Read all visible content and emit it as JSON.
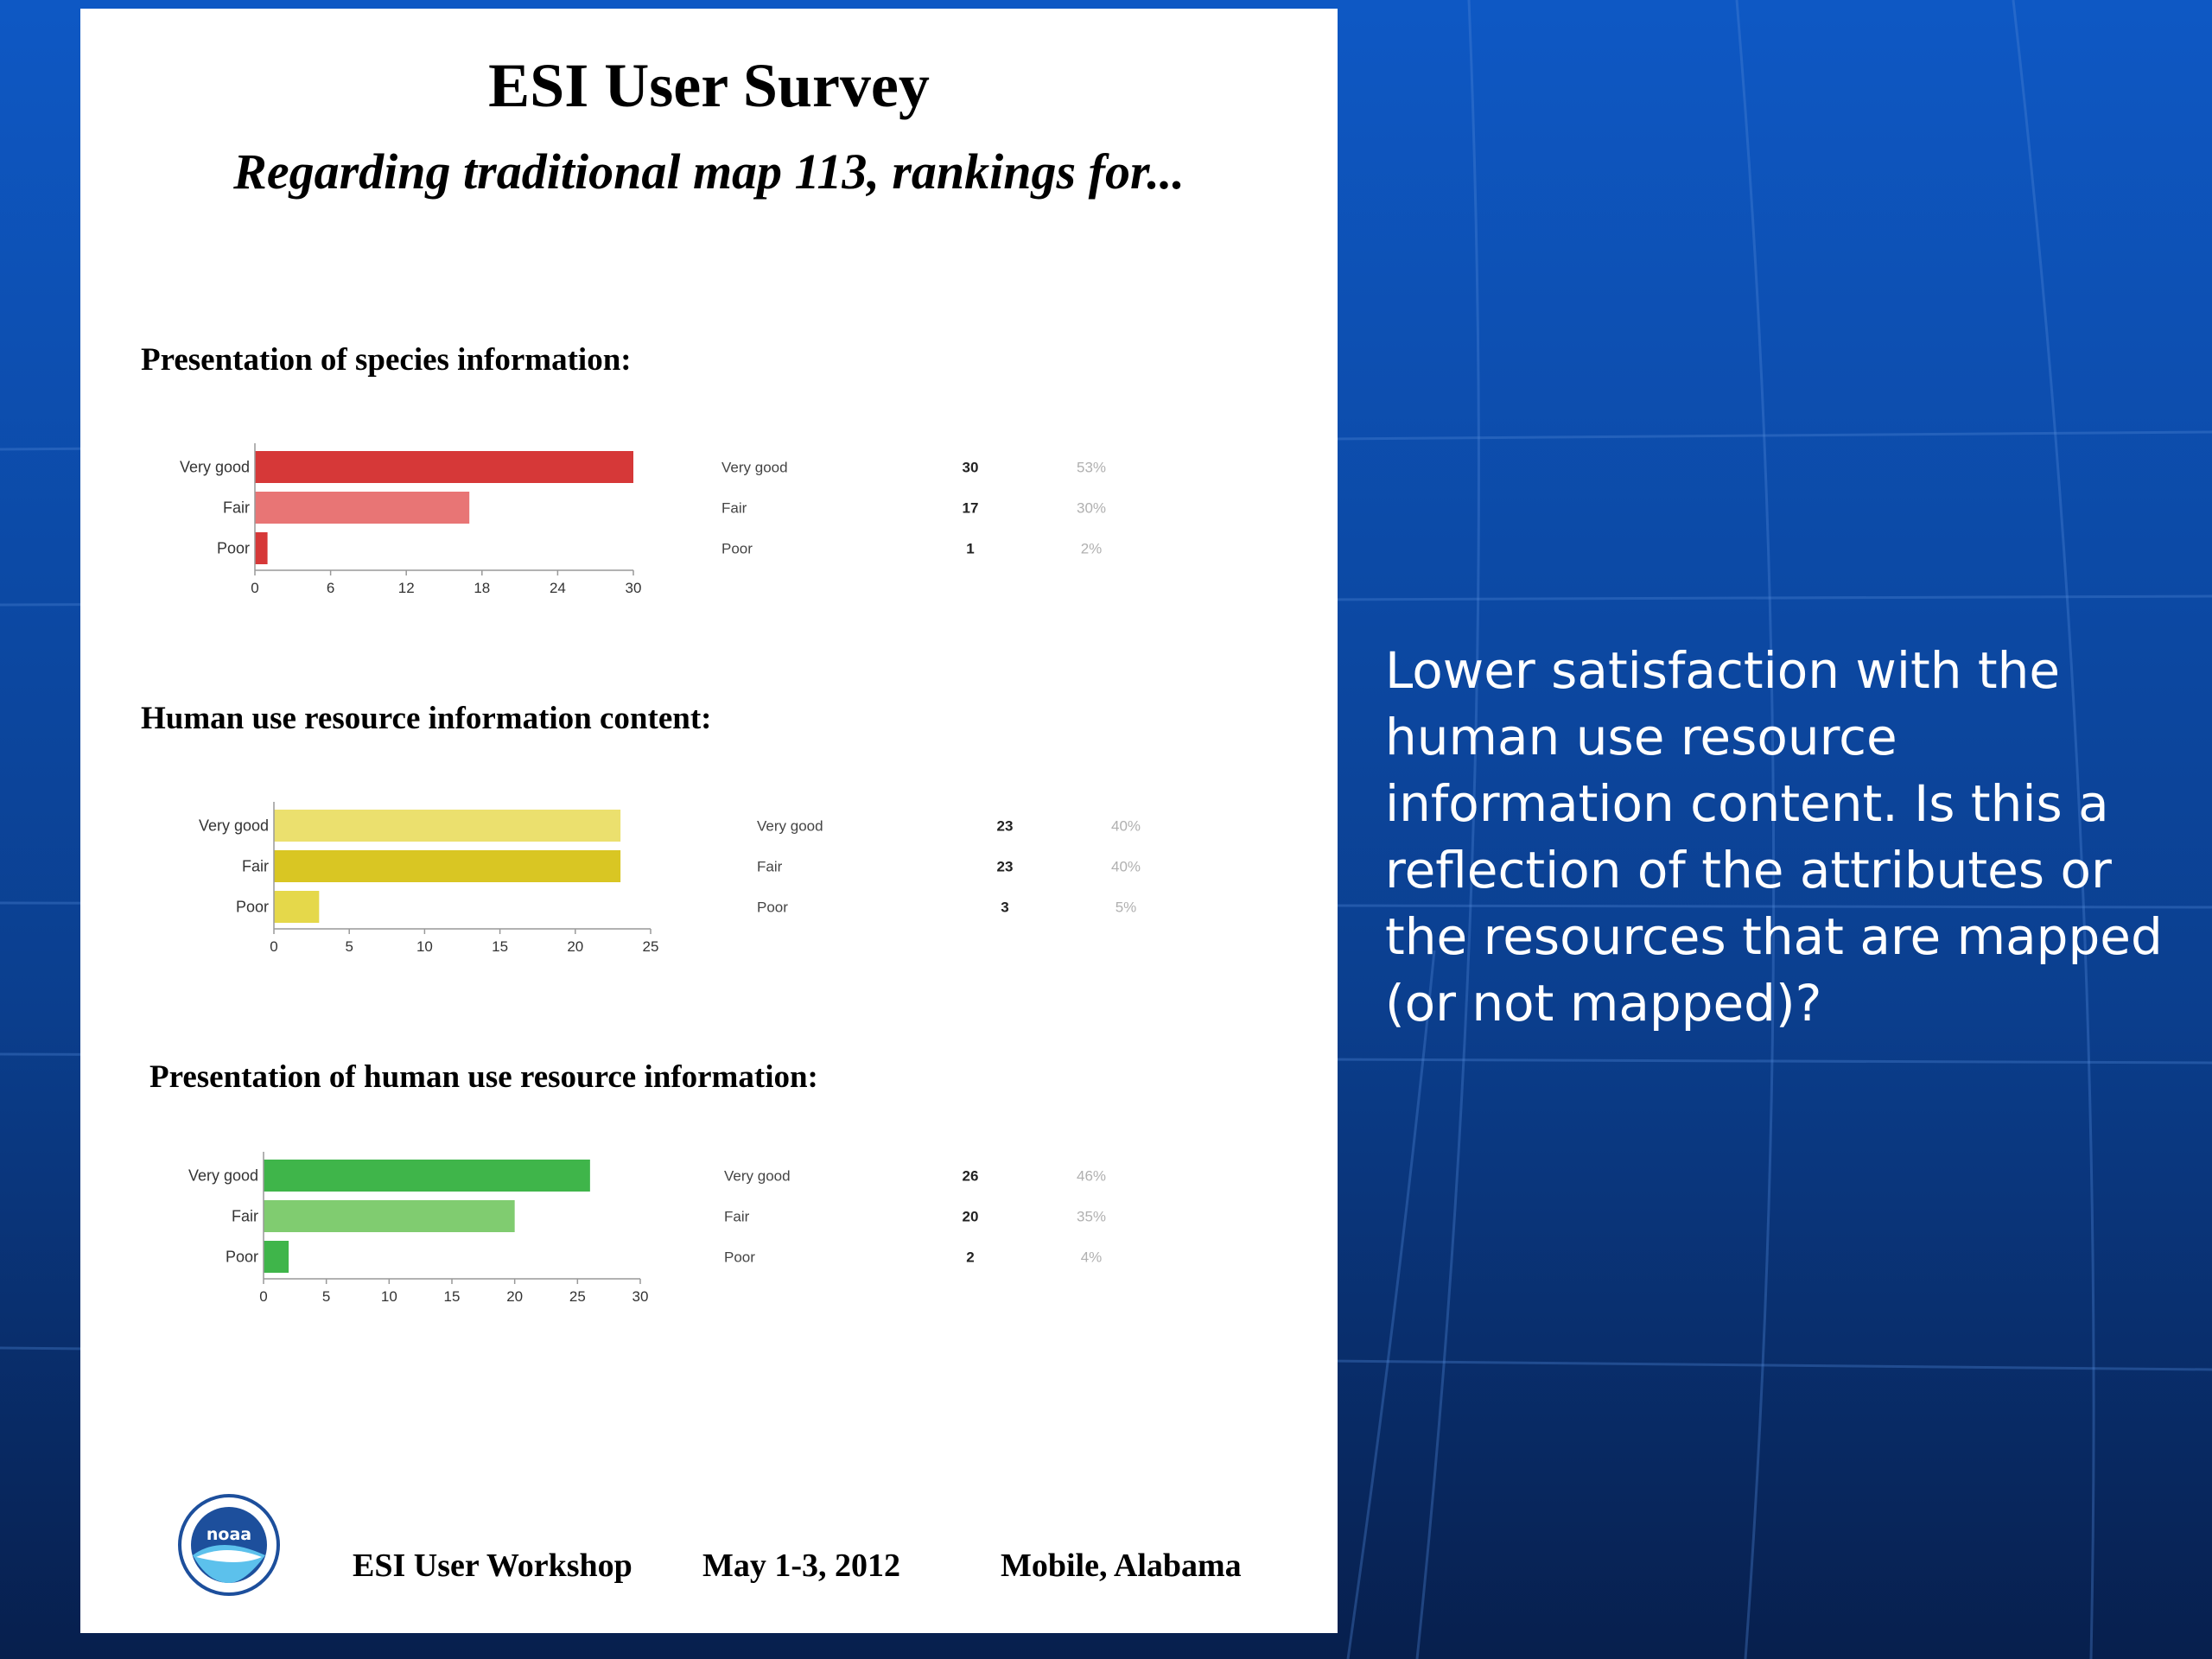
{
  "document": {
    "title": "ESI User Survey",
    "subtitle": "Regarding traditional map 113, rankings for..."
  },
  "chart_data": [
    {
      "type": "bar",
      "orientation": "horizontal",
      "title": "Presentation of species information:",
      "categories": [
        "Very good",
        "Fair",
        "Poor"
      ],
      "values": [
        30,
        17,
        1
      ],
      "percentages": [
        "53%",
        "30%",
        "2%"
      ],
      "xlim": [
        0,
        30
      ],
      "xticks": [
        "0",
        "6",
        "12",
        "18",
        "24",
        "30"
      ],
      "colors": [
        "#d63838",
        "#e87575",
        "#d63838"
      ],
      "table_color": "#b0b0b0"
    },
    {
      "type": "bar",
      "orientation": "horizontal",
      "title": "Human use resource information content:",
      "categories": [
        "Very good",
        "Fair",
        "Poor"
      ],
      "values": [
        23,
        23,
        3
      ],
      "percentages": [
        "40%",
        "40%",
        "5%"
      ],
      "xlim": [
        0,
        25
      ],
      "xticks": [
        "0",
        "5",
        "10",
        "15",
        "20",
        "25"
      ],
      "colors": [
        "#ebe06e",
        "#d9c623",
        "#e5d84a"
      ],
      "table_color": "#b0b0b0"
    },
    {
      "type": "bar",
      "orientation": "horizontal",
      "title": "Presentation of human use resource information:",
      "categories": [
        "Very good",
        "Fair",
        "Poor"
      ],
      "values": [
        26,
        20,
        2
      ],
      "percentages": [
        "46%",
        "35%",
        "4%"
      ],
      "xlim": [
        0,
        30
      ],
      "xticks": [
        "0",
        "5",
        "10",
        "15",
        "20",
        "25",
        "30"
      ],
      "colors": [
        "#3fb54a",
        "#80cc70",
        "#3fb54a"
      ],
      "table_color": "#b0b0b0"
    }
  ],
  "footer": {
    "event": "ESI User Workshop",
    "dates": "May 1-3, 2012",
    "location": "Mobile, Alabama",
    "logo_text": "noaa"
  },
  "comment": "Lower satisfaction with the human use resource information content. Is this a reflection of the attributes or the resources that are mapped (or not mapped)?",
  "colors": {
    "slide_background": "#0a3f8c",
    "grid_lines": "#3b74c4",
    "comment_text": "#ffffff"
  }
}
